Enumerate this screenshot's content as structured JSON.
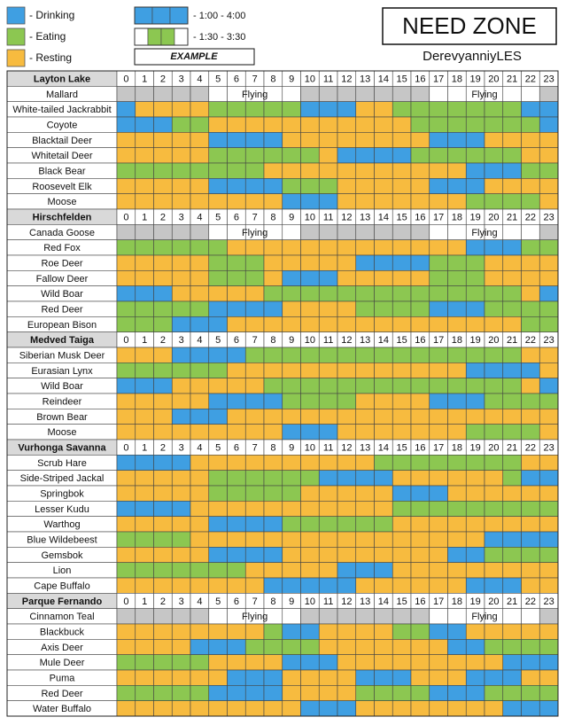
{
  "header": {
    "title": "NEED ZONE",
    "author": "DerevyanniyLES"
  },
  "legend": [
    {
      "label": "- Drinking",
      "code": "D",
      "color": "#3f9fe2"
    },
    {
      "label": "- Eating",
      "code": "E",
      "color": "#8cc751"
    },
    {
      "label": "- Resting",
      "code": "R",
      "color": "#f7bb3f"
    }
  ],
  "extra_colors": {
    "G": "#c6c6c6",
    "W": "#ffffff"
  },
  "example": {
    "label": "EXAMPLE",
    "items": [
      {
        "label": "- 1:00 - 4:00",
        "cells": "DDD"
      },
      {
        "label": "- 1:30 - 3:30",
        "cells": "WEEW"
      }
    ]
  },
  "hours": [
    0,
    1,
    2,
    3,
    4,
    5,
    6,
    7,
    8,
    9,
    10,
    11,
    12,
    13,
    14,
    15,
    16,
    17,
    18,
    19,
    20,
    21,
    22,
    23
  ],
  "regions": [
    {
      "name": "Layton Lake",
      "animals": [
        {
          "name": "Mallard",
          "cells": "GGGGGWWWWWGGGGGGGWWWWWWG",
          "label": "Flying"
        },
        {
          "name": "White-tailed Jackrabbit",
          "cells": "DRRRREEEEEDDDRREEEEEEEDD"
        },
        {
          "name": "Coyote",
          "cells": "DDDEERRRRRRRRRRREEEEEEED"
        },
        {
          "name": "Blacktail Deer",
          "cells": "RRRRRDDDDRRRRRRRRDDDRRRR"
        },
        {
          "name": "Whitetail Deer",
          "cells": "RRRRREEEEEERDDDDEEEEEERR"
        },
        {
          "name": "Black Bear",
          "cells": "EEEEEEEERRRRRRRRRRRDDDEE"
        },
        {
          "name": "Roosevelt Elk",
          "cells": "RRRRRDDDDEEERRRRRDDDRRRR"
        },
        {
          "name": "Moose",
          "cells": "RRRRRRRRRDDDRRRRRRREEEER"
        }
      ]
    },
    {
      "name": "Hirschfelden",
      "animals": [
        {
          "name": "Canada Goose",
          "cells": "GGGGGWWWWWGGGGGGGWWWWWWG",
          "label": "Flying"
        },
        {
          "name": "Red Fox",
          "cells": "EEEEEERRRRRRRRRRRRRDDDEE"
        },
        {
          "name": "Roe Deer",
          "cells": "RRRRREEERRRRRDDDDEEERRRR"
        },
        {
          "name": "Fallow Deer",
          "cells": "RRRRREEERDDDRRRRREEERRRR"
        },
        {
          "name": "Wild Boar",
          "cells": "DDDRRRRREEEEEEEEEEEEEERD"
        },
        {
          "name": "Red Deer",
          "cells": "EEEEEDDDDRRRREEEEDDDEEEE"
        },
        {
          "name": "European Bison",
          "cells": "EEEDDDRRRRRRRRRRRRRRRREE"
        }
      ]
    },
    {
      "name": "Medved Taiga",
      "animals": [
        {
          "name": "Siberian Musk Deer",
          "cells": "RRRDDDDEEEEEEEEEEEEEEERR"
        },
        {
          "name": "Eurasian Lynx",
          "cells": "EEEEEERRRRRRRRRRRRRDDDDR"
        },
        {
          "name": "Wild Boar",
          "cells": "DDDRRRRREEEEEEEEEEEEEERD"
        },
        {
          "name": "Reindeer",
          "cells": "RRRRRDDDDEEEERRRRDDDEEEE"
        },
        {
          "name": "Brown Bear",
          "cells": "RRRDDDRRRRRRRRRRRRRRRRRR"
        },
        {
          "name": "Moose",
          "cells": "RRRRRRRRRDDDRRRRRRREEEER"
        }
      ]
    },
    {
      "name": "Vurhonga Savanna",
      "animals": [
        {
          "name": "Scrub Hare",
          "cells": "DDDDRRRRRRRRRREEEEEEEERR"
        },
        {
          "name": "Side-Striped Jackal",
          "cells": "RRRRREEEEEEDDDDRRRRRREDD"
        },
        {
          "name": "Springbok",
          "cells": "RRRRREEEEERRRRRDDDRRRRRR"
        },
        {
          "name": "Lesser Kudu",
          "cells": "DDDDRRRRRRRRRRREEEEEEEEE"
        },
        {
          "name": "Warthog",
          "cells": "RRRRRDDDDEEEEEERRRRRRRRR"
        },
        {
          "name": "Blue Wildebeest",
          "cells": "EEEERRRRRRRRRRRRRRRRDDDD"
        },
        {
          "name": "Gemsbok",
          "cells": "RRRRRDDDDRRRRRRRRRDDEEEE"
        },
        {
          "name": "Lion",
          "cells": "EEEEEEERRRRRDDDRRRRRRRRR"
        },
        {
          "name": "Cape Buffalo",
          "cells": "RRRRRRRRDDDDDRRRRRRDDDRR"
        }
      ]
    },
    {
      "name": "Parque Fernando",
      "animals": [
        {
          "name": "Cinnamon Teal",
          "cells": "GGGGGWWWWWGGGGGGGWWWWWWG",
          "label": "Flying"
        },
        {
          "name": "Blackbuck",
          "cells": "RRRRRRRREDDRRRREEDDRRRRR"
        },
        {
          "name": "Axis Deer",
          "cells": "RRRRDDDEEEERRRRRRRDDEEEE"
        },
        {
          "name": "Mule Deer",
          "cells": "EEEEERRRRDDDRRRRRRRRRDDD"
        },
        {
          "name": "Puma",
          "cells": "RRRRRRDDDRRRRDDDRRRDDDRR"
        },
        {
          "name": "Red Deer",
          "cells": "EEEEEDDDDRRRREEEEDDDEEEE"
        },
        {
          "name": "Water Buffalo",
          "cells": "RRRRRRRRRRDDDRRRRRRRRDDD"
        }
      ]
    }
  ]
}
